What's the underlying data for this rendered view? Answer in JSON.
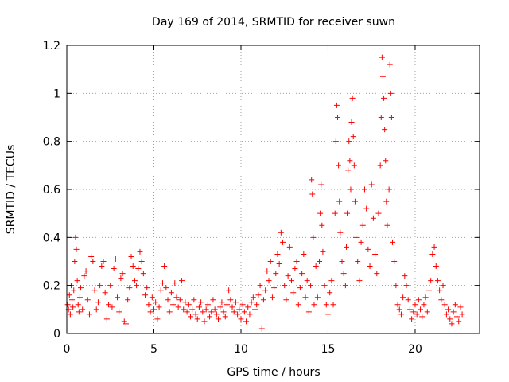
{
  "chart_data": {
    "type": "scatter",
    "title": "Day 169 of 2014, SRMTID for receiver suwn",
    "xlabel": "GPS time / hours",
    "ylabel": "SRMTID / TECUs",
    "xlim": [
      0,
      23.7
    ],
    "ylim": [
      0,
      1.2
    ],
    "x_ticks": [
      0,
      5,
      10,
      15,
      20
    ],
    "x_tick_labels": [
      "0",
      "5",
      "10",
      "15",
      "20"
    ],
    "y_ticks": [
      0,
      0.2,
      0.4,
      0.6,
      0.8,
      1.0,
      1.2
    ],
    "y_tick_labels": [
      "0",
      "0.2",
      "0.4",
      "0.6",
      "0.8",
      "1",
      "1.2"
    ],
    "grid": true,
    "marker": "+",
    "color": "#ff0000",
    "series": [
      {
        "name": "suwn",
        "points": [
          [
            0.05,
            0.12
          ],
          [
            0.1,
            0.1
          ],
          [
            0.15,
            0.16
          ],
          [
            0.2,
            0.08
          ],
          [
            0.25,
            0.2
          ],
          [
            0.3,
            0.14
          ],
          [
            0.35,
            0.11
          ],
          [
            0.4,
            0.18
          ],
          [
            0.45,
            0.3
          ],
          [
            0.5,
            0.4
          ],
          [
            0.55,
            0.35
          ],
          [
            0.6,
            0.22
          ],
          [
            0.65,
            0.12
          ],
          [
            0.7,
            0.09
          ],
          [
            0.75,
            0.15
          ],
          [
            0.8,
            0.19
          ],
          [
            0.9,
            0.1
          ],
          [
            1.0,
            0.24
          ],
          [
            1.1,
            0.26
          ],
          [
            1.2,
            0.14
          ],
          [
            1.3,
            0.08
          ],
          [
            1.4,
            0.32
          ],
          [
            1.5,
            0.3
          ],
          [
            1.6,
            0.18
          ],
          [
            1.7,
            0.1
          ],
          [
            1.8,
            0.13
          ],
          [
            1.9,
            0.2
          ],
          [
            2.0,
            0.28
          ],
          [
            2.1,
            0.3
          ],
          [
            2.2,
            0.17
          ],
          [
            2.3,
            0.06
          ],
          [
            2.4,
            0.12
          ],
          [
            2.5,
            0.2
          ],
          [
            2.6,
            0.11
          ],
          [
            2.7,
            0.27
          ],
          [
            2.8,
            0.31
          ],
          [
            2.9,
            0.15
          ],
          [
            3.0,
            0.09
          ],
          [
            3.1,
            0.23
          ],
          [
            3.2,
            0.25
          ],
          [
            3.3,
            0.05
          ],
          [
            3.4,
            0.04
          ],
          [
            3.5,
            0.14
          ],
          [
            3.6,
            0.19
          ],
          [
            3.7,
            0.32
          ],
          [
            3.8,
            0.28
          ],
          [
            3.9,
            0.22
          ],
          [
            4.0,
            0.2
          ],
          [
            4.1,
            0.27
          ],
          [
            4.2,
            0.34
          ],
          [
            4.3,
            0.3
          ],
          [
            4.4,
            0.25
          ],
          [
            4.5,
            0.16
          ],
          [
            4.6,
            0.19
          ],
          [
            4.7,
            0.12
          ],
          [
            4.8,
            0.09
          ],
          [
            4.9,
            0.15
          ],
          [
            5.0,
            0.1
          ],
          [
            5.1,
            0.13
          ],
          [
            5.2,
            0.06
          ],
          [
            5.3,
            0.11
          ],
          [
            5.4,
            0.18
          ],
          [
            5.5,
            0.21
          ],
          [
            5.6,
            0.28
          ],
          [
            5.7,
            0.19
          ],
          [
            5.8,
            0.14
          ],
          [
            5.9,
            0.09
          ],
          [
            6.0,
            0.17
          ],
          [
            6.1,
            0.12
          ],
          [
            6.2,
            0.21
          ],
          [
            6.3,
            0.15
          ],
          [
            6.4,
            0.11
          ],
          [
            6.5,
            0.14
          ],
          [
            6.6,
            0.22
          ],
          [
            6.7,
            0.1
          ],
          [
            6.8,
            0.13
          ],
          [
            6.9,
            0.09
          ],
          [
            7.0,
            0.12
          ],
          [
            7.1,
            0.07
          ],
          [
            7.2,
            0.1
          ],
          [
            7.3,
            0.14
          ],
          [
            7.4,
            0.08
          ],
          [
            7.5,
            0.06
          ],
          [
            7.6,
            0.11
          ],
          [
            7.7,
            0.13
          ],
          [
            7.8,
            0.09
          ],
          [
            7.9,
            0.05
          ],
          [
            8.0,
            0.1
          ],
          [
            8.1,
            0.12
          ],
          [
            8.2,
            0.07
          ],
          [
            8.3,
            0.09
          ],
          [
            8.4,
            0.14
          ],
          [
            8.5,
            0.1
          ],
          [
            8.6,
            0.08
          ],
          [
            8.7,
            0.06
          ],
          [
            8.8,
            0.11
          ],
          [
            8.9,
            0.13
          ],
          [
            9.0,
            0.09
          ],
          [
            9.1,
            0.07
          ],
          [
            9.2,
            0.12
          ],
          [
            9.3,
            0.18
          ],
          [
            9.4,
            0.14
          ],
          [
            9.5,
            0.11
          ],
          [
            9.6,
            0.09
          ],
          [
            9.7,
            0.13
          ],
          [
            9.8,
            0.08
          ],
          [
            9.9,
            0.1
          ],
          [
            10.0,
            0.06
          ],
          [
            10.1,
            0.12
          ],
          [
            10.2,
            0.09
          ],
          [
            10.3,
            0.05
          ],
          [
            10.4,
            0.11
          ],
          [
            10.5,
            0.08
          ],
          [
            10.6,
            0.13
          ],
          [
            10.7,
            0.15
          ],
          [
            10.8,
            0.1
          ],
          [
            10.9,
            0.12
          ],
          [
            11.0,
            0.16
          ],
          [
            11.1,
            0.2
          ],
          [
            11.2,
            0.02
          ],
          [
            11.3,
            0.14
          ],
          [
            11.4,
            0.18
          ],
          [
            11.5,
            0.26
          ],
          [
            11.6,
            0.22
          ],
          [
            11.7,
            0.3
          ],
          [
            11.8,
            0.15
          ],
          [
            11.9,
            0.19
          ],
          [
            12.0,
            0.25
          ],
          [
            12.1,
            0.33
          ],
          [
            12.2,
            0.29
          ],
          [
            12.3,
            0.42
          ],
          [
            12.4,
            0.38
          ],
          [
            12.5,
            0.2
          ],
          [
            12.6,
            0.14
          ],
          [
            12.7,
            0.24
          ],
          [
            12.8,
            0.36
          ],
          [
            12.9,
            0.22
          ],
          [
            13.0,
            0.17
          ],
          [
            13.1,
            0.27
          ],
          [
            13.2,
            0.3
          ],
          [
            13.3,
            0.12
          ],
          [
            13.4,
            0.19
          ],
          [
            13.5,
            0.25
          ],
          [
            13.6,
            0.33
          ],
          [
            13.7,
            0.15
          ],
          [
            13.8,
            0.22
          ],
          [
            13.9,
            0.09
          ],
          [
            14.0,
            0.2
          ],
          [
            14.05,
            0.64
          ],
          [
            14.1,
            0.58
          ],
          [
            14.15,
            0.4
          ],
          [
            14.2,
            0.12
          ],
          [
            14.3,
            0.28
          ],
          [
            14.4,
            0.15
          ],
          [
            14.5,
            0.3
          ],
          [
            14.55,
            0.5
          ],
          [
            14.6,
            0.62
          ],
          [
            14.65,
            0.45
          ],
          [
            14.7,
            0.34
          ],
          [
            14.8,
            0.2
          ],
          [
            14.9,
            0.12
          ],
          [
            15.0,
            0.08
          ],
          [
            15.1,
            0.17
          ],
          [
            15.2,
            0.22
          ],
          [
            15.3,
            0.12
          ],
          [
            15.4,
            0.5
          ],
          [
            15.45,
            0.8
          ],
          [
            15.5,
            0.95
          ],
          [
            15.55,
            0.9
          ],
          [
            15.6,
            0.7
          ],
          [
            15.65,
            0.55
          ],
          [
            15.7,
            0.42
          ],
          [
            15.8,
            0.3
          ],
          [
            15.9,
            0.25
          ],
          [
            16.0,
            0.2
          ],
          [
            16.05,
            0.36
          ],
          [
            16.1,
            0.5
          ],
          [
            16.15,
            0.68
          ],
          [
            16.2,
            0.8
          ],
          [
            16.25,
            0.72
          ],
          [
            16.3,
            0.6
          ],
          [
            16.35,
            0.88
          ],
          [
            16.4,
            0.98
          ],
          [
            16.45,
            0.82
          ],
          [
            16.5,
            0.7
          ],
          [
            16.55,
            0.55
          ],
          [
            16.6,
            0.4
          ],
          [
            16.7,
            0.3
          ],
          [
            16.8,
            0.22
          ],
          [
            16.9,
            0.38
          ],
          [
            17.0,
            0.45
          ],
          [
            17.1,
            0.6
          ],
          [
            17.2,
            0.52
          ],
          [
            17.3,
            0.35
          ],
          [
            17.4,
            0.28
          ],
          [
            17.5,
            0.62
          ],
          [
            17.6,
            0.48
          ],
          [
            17.7,
            0.33
          ],
          [
            17.8,
            0.25
          ],
          [
            17.9,
            0.5
          ],
          [
            18.0,
            0.7
          ],
          [
            18.05,
            0.9
          ],
          [
            18.1,
            1.15
          ],
          [
            18.15,
            1.07
          ],
          [
            18.2,
            0.98
          ],
          [
            18.25,
            0.85
          ],
          [
            18.3,
            0.72
          ],
          [
            18.35,
            0.55
          ],
          [
            18.4,
            0.45
          ],
          [
            18.5,
            0.6
          ],
          [
            18.55,
            1.12
          ],
          [
            18.6,
            1.0
          ],
          [
            18.65,
            0.9
          ],
          [
            18.7,
            0.38
          ],
          [
            18.8,
            0.3
          ],
          [
            18.9,
            0.2
          ],
          [
            19.0,
            0.12
          ],
          [
            19.1,
            0.1
          ],
          [
            19.2,
            0.08
          ],
          [
            19.3,
            0.15
          ],
          [
            19.4,
            0.24
          ],
          [
            19.5,
            0.2
          ],
          [
            19.6,
            0.14
          ],
          [
            19.7,
            0.1
          ],
          [
            19.8,
            0.06
          ],
          [
            19.9,
            0.09
          ],
          [
            20.0,
            0.12
          ],
          [
            20.1,
            0.08
          ],
          [
            20.2,
            0.14
          ],
          [
            20.3,
            0.1
          ],
          [
            20.4,
            0.07
          ],
          [
            20.5,
            0.12
          ],
          [
            20.6,
            0.15
          ],
          [
            20.7,
            0.09
          ],
          [
            20.8,
            0.18
          ],
          [
            20.9,
            0.22
          ],
          [
            21.0,
            0.33
          ],
          [
            21.1,
            0.36
          ],
          [
            21.2,
            0.28
          ],
          [
            21.3,
            0.22
          ],
          [
            21.4,
            0.18
          ],
          [
            21.5,
            0.14
          ],
          [
            21.6,
            0.2
          ],
          [
            21.7,
            0.12
          ],
          [
            21.8,
            0.08
          ],
          [
            21.9,
            0.1
          ],
          [
            22.0,
            0.06
          ],
          [
            22.1,
            0.04
          ],
          [
            22.2,
            0.09
          ],
          [
            22.3,
            0.12
          ],
          [
            22.4,
            0.07
          ],
          [
            22.5,
            0.05
          ],
          [
            22.6,
            0.11
          ],
          [
            22.7,
            0.08
          ]
        ]
      }
    ]
  }
}
